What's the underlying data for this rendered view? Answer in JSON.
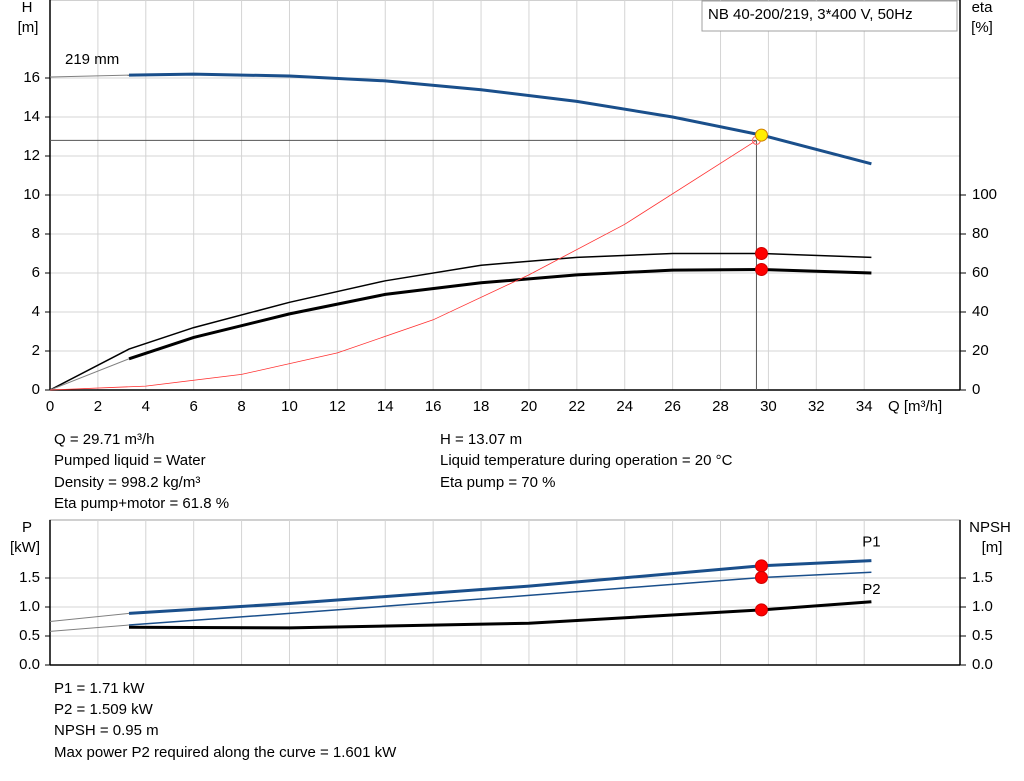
{
  "chart_data": [
    {
      "type": "line",
      "title": "NB 40-200/219, 3*400 V, 50Hz",
      "ylabel": [
        "H",
        "[m]"
      ],
      "y2label": [
        "eta",
        "[%]"
      ],
      "xlabel": "Q [m³/h]",
      "xlim": [
        0,
        38
      ],
      "xticks": [
        0,
        2,
        4,
        6,
        8,
        10,
        12,
        14,
        16,
        18,
        20,
        22,
        24,
        26,
        28,
        30,
        32,
        34
      ],
      "ylim": [
        0,
        20
      ],
      "yticks": [
        0,
        2,
        4,
        6,
        8,
        10,
        12,
        14,
        16
      ],
      "y2lim": [
        0,
        200
      ],
      "y2ticks": [
        0,
        20,
        40,
        60,
        80,
        100
      ],
      "grid": true,
      "series": [
        {
          "color": "#808080",
          "line_width": 1,
          "x": [
            0,
            3.3
          ],
          "values": [
            16.05,
            16.15
          ]
        },
        {
          "name": "219 mm",
          "color": "#1a4f8b",
          "line_width": 3,
          "x": [
            3.3,
            6,
            10,
            14,
            18,
            22,
            26,
            29.71,
            34.3
          ],
          "values": [
            16.15,
            16.2,
            16.1,
            15.85,
            15.4,
            14.8,
            14.0,
            13.07,
            11.6
          ]
        },
        {
          "color": "#000000",
          "line_width": 1.5,
          "axis": "y2",
          "x": [
            0,
            3.3,
            6,
            10,
            14,
            18,
            22,
            26,
            29.71,
            34.3
          ],
          "values": [
            0,
            21,
            32,
            45,
            56,
            64,
            68,
            70,
            70,
            68
          ]
        },
        {
          "color": "#808080",
          "line_width": 1,
          "axis": "y2",
          "x": [
            0,
            3.3
          ],
          "values": [
            0,
            16
          ]
        },
        {
          "color": "#000000",
          "line_width": 3,
          "axis": "y2",
          "x": [
            3.3,
            6,
            10,
            14,
            18,
            22,
            26,
            29.71,
            34.3
          ],
          "values": [
            16,
            27,
            39,
            49,
            55,
            59,
            61.5,
            61.8,
            60
          ]
        },
        {
          "color": "#ff3030",
          "line_width": 0.8,
          "x": [
            0,
            4,
            8,
            12,
            16,
            20,
            24,
            29.5
          ],
          "values": [
            0,
            0.2,
            0.8,
            1.9,
            3.6,
            5.9,
            8.5,
            12.8
          ]
        }
      ],
      "points": [
        {
          "x": 29.71,
          "y": 13.07,
          "color": "#ffee00"
        },
        {
          "x": 29.71,
          "y": 70,
          "axis": "y2",
          "color": "#ff0000"
        },
        {
          "x": 29.71,
          "y": 61.8,
          "axis": "y2",
          "color": "#ff0000"
        }
      ],
      "annotations": [
        "Q = 29.71 m³/h",
        "Pumped liquid = Water",
        "Density = 998.2 kg/m³",
        "Eta pump+motor = 61.8 %",
        "H = 13.07 m",
        "Liquid temperature during operation = 20 °C",
        "Eta pump = 70 %"
      ]
    },
    {
      "type": "line",
      "ylabel": [
        "P",
        "[kW]"
      ],
      "y2label": [
        "NPSH",
        "[m]"
      ],
      "xlim": [
        0,
        38
      ],
      "xticks": [
        0,
        2,
        4,
        6,
        8,
        10,
        12,
        14,
        16,
        18,
        20,
        22,
        24,
        26,
        28,
        30,
        32,
        34
      ],
      "ylim": [
        0,
        2.5
      ],
      "yticks": [
        {
          "value": 0,
          "label": "0.0"
        },
        {
          "value": 0.5,
          "label": "0.5"
        },
        {
          "value": 1,
          "label": "1.0"
        },
        {
          "value": 1.5,
          "label": "1.5"
        }
      ],
      "y2lim": [
        0,
        2.5
      ],
      "y2ticks": [
        {
          "value": 0,
          "label": "0.0"
        },
        {
          "value": 0.5,
          "label": "0.5"
        },
        {
          "value": 1,
          "label": "1.0"
        },
        {
          "value": 1.5,
          "label": "1.5"
        }
      ],
      "grid": true,
      "series": [
        {
          "color": "#808080",
          "line_width": 1,
          "x": [
            0,
            3.3
          ],
          "values": [
            0.75,
            0.89
          ]
        },
        {
          "name": "P1",
          "color": "#1a4f8b",
          "line_width": 3,
          "x": [
            3.3,
            10,
            20,
            29.71,
            34.3
          ],
          "values": [
            0.89,
            1.06,
            1.36,
            1.71,
            1.8
          ]
        },
        {
          "color": "#808080",
          "line_width": 1,
          "x": [
            0,
            3.3
          ],
          "values": [
            0.58,
            0.69
          ]
        },
        {
          "name": "P2",
          "color": "#1a4f8b",
          "line_width": 1.5,
          "x": [
            3.3,
            10,
            20,
            29.71,
            34.3
          ],
          "values": [
            0.69,
            0.89,
            1.2,
            1.509,
            1.6
          ]
        },
        {
          "color": "#000000",
          "line_width": 3,
          "axis": "y2",
          "x": [
            3.3,
            10,
            20,
            29.71,
            34.3
          ],
          "values": [
            0.65,
            0.64,
            0.72,
            0.95,
            1.09
          ]
        }
      ],
      "points": [
        {
          "x": 29.71,
          "y": 1.71,
          "color": "#ff0000"
        },
        {
          "x": 29.71,
          "y": 1.509,
          "color": "#ff0000"
        },
        {
          "x": 29.71,
          "y": 0.95,
          "axis": "y2",
          "color": "#ff0000"
        }
      ],
      "annotations": [
        "P1 = 1.71 kW",
        "P2 = 1.509 kW",
        "NPSH = 0.95 m",
        "Max power P2 required along the curve = 1.601 kW"
      ]
    }
  ]
}
